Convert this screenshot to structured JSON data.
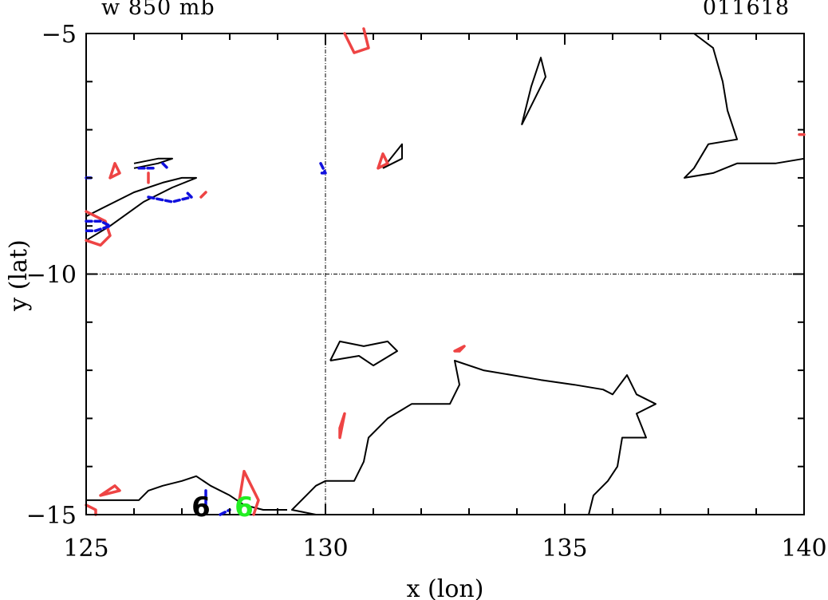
{
  "header": {
    "left": "w 850 mb",
    "right": "011618"
  },
  "chart_data": {
    "type": "contour",
    "xlabel": "x (lon)",
    "ylabel": "y (lat)",
    "xlim": [
      125,
      140
    ],
    "ylim": [
      -15,
      -5
    ],
    "x_ticks": [
      125,
      130,
      135,
      140
    ],
    "y_ticks": [
      -15,
      -10,
      -5
    ],
    "x_tick_labels": [
      "125",
      "130",
      "135",
      "140"
    ],
    "y_tick_labels": [
      "−15",
      "−10",
      "−5"
    ],
    "reference_lines": {
      "x": 130,
      "y": -10
    },
    "colors": {
      "coastline": "#000000",
      "positive": "#ee4444",
      "negative": "#1010dd",
      "marker_green": "#22ee22"
    },
    "markers": [
      {
        "label": "6",
        "lon": 127.4,
        "lat": -14.8,
        "color": "#000000"
      },
      {
        "label": "6",
        "lon": 128.3,
        "lat": -14.8,
        "color": "#22ee22"
      }
    ],
    "coastlines": [
      [
        [
          125,
          -8.8
        ],
        [
          125.6,
          -8.5
        ],
        [
          126,
          -8.3
        ],
        [
          126.6,
          -8.1
        ],
        [
          127,
          -8
        ],
        [
          127.3,
          -8
        ],
        [
          126.8,
          -8.2
        ],
        [
          126.2,
          -8.5
        ],
        [
          125.5,
          -9
        ],
        [
          125,
          -9.3
        ]
      ],
      [
        [
          126,
          -7.7
        ],
        [
          126.5,
          -7.6
        ],
        [
          126.8,
          -7.6
        ],
        [
          126.5,
          -7.7
        ],
        [
          126,
          -7.8
        ]
      ],
      [
        [
          130.6,
          -5
        ],
        [
          130.6,
          -5
        ]
      ],
      [
        [
          137,
          -5
        ],
        [
          137.7,
          -5
        ],
        [
          138.1,
          -5.3
        ],
        [
          138.3,
          -6
        ],
        [
          138.4,
          -6.6
        ],
        [
          138.6,
          -7.2
        ],
        [
          138,
          -7.3
        ],
        [
          137.7,
          -7.8
        ],
        [
          137.5,
          -8
        ],
        [
          138.1,
          -7.9
        ],
        [
          138.6,
          -7.7
        ],
        [
          139.4,
          -7.7
        ],
        [
          140,
          -7.6
        ]
      ],
      [
        [
          134.1,
          -6.9
        ],
        [
          134.3,
          -6.1
        ],
        [
          134.5,
          -5.5
        ],
        [
          134.6,
          -5.9
        ],
        [
          134.1,
          -6.9
        ]
      ],
      [
        [
          131.2,
          -7.8
        ],
        [
          131.6,
          -7.3
        ],
        [
          131.6,
          -7.6
        ],
        [
          131.2,
          -7.8
        ]
      ],
      [
        [
          130.1,
          -11.8
        ],
        [
          130.3,
          -11.4
        ],
        [
          130.8,
          -11.5
        ],
        [
          131.3,
          -11.4
        ],
        [
          131.5,
          -11.6
        ],
        [
          131,
          -11.9
        ],
        [
          130.7,
          -11.7
        ],
        [
          130.1,
          -11.8
        ]
      ],
      [
        [
          129.2,
          -14.9
        ],
        [
          128.7,
          -14.9
        ],
        [
          128.3,
          -14.8
        ],
        [
          128,
          -14.6
        ],
        [
          127.6,
          -14.4
        ],
        [
          127.3,
          -14.2
        ],
        [
          127,
          -14.3
        ],
        [
          126.6,
          -14.4
        ],
        [
          126.3,
          -14.5
        ],
        [
          126.1,
          -14.7
        ],
        [
          125.6,
          -14.7
        ],
        [
          125,
          -14.7
        ]
      ],
      [
        [
          129.8,
          -15
        ],
        [
          129.3,
          -14.9
        ],
        [
          129.6,
          -14.6
        ],
        [
          129.8,
          -14.4
        ],
        [
          130,
          -14.3
        ],
        [
          130.6,
          -14.3
        ],
        [
          130.8,
          -13.9
        ],
        [
          130.9,
          -13.4
        ],
        [
          131.3,
          -13
        ],
        [
          131.8,
          -12.7
        ],
        [
          132.6,
          -12.7
        ],
        [
          132.8,
          -12.3
        ],
        [
          132.7,
          -11.8
        ],
        [
          133.3,
          -12
        ],
        [
          133.9,
          -12.1
        ],
        [
          134.5,
          -12.2
        ],
        [
          135.2,
          -12.3
        ],
        [
          135.8,
          -12.4
        ],
        [
          136,
          -12.5
        ],
        [
          136.3,
          -12.1
        ],
        [
          136.5,
          -12.5
        ],
        [
          136.9,
          -12.7
        ],
        [
          136.5,
          -12.9
        ],
        [
          136.7,
          -13.4
        ],
        [
          136.2,
          -13.4
        ],
        [
          136.1,
          -14
        ],
        [
          135.9,
          -14.3
        ],
        [
          135.6,
          -14.6
        ],
        [
          135.5,
          -15
        ]
      ]
    ],
    "positive_contours": [
      [
        [
          130.4,
          -5
        ],
        [
          130.6,
          -5.4
        ],
        [
          130.9,
          -5.3
        ],
        [
          130.8,
          -4.9
        ]
      ],
      [
        [
          131.1,
          -7.8
        ],
        [
          131.2,
          -7.5
        ],
        [
          131.3,
          -7.7
        ],
        [
          131.1,
          -7.8
        ]
      ],
      [
        [
          132.8,
          -11.6
        ],
        [
          132.9,
          -11.5
        ],
        [
          132.7,
          -11.6
        ],
        [
          132.8,
          -11.6
        ]
      ],
      [
        [
          130.3,
          -13.2
        ],
        [
          130.4,
          -12.9
        ],
        [
          130.3,
          -13.4
        ],
        [
          130.3,
          -13.2
        ]
      ],
      [
        [
          125.5,
          -8
        ],
        [
          125.6,
          -7.7
        ],
        [
          125.7,
          -7.9
        ],
        [
          125.5,
          -8
        ]
      ],
      [
        [
          125,
          -8.7
        ],
        [
          125.4,
          -8.9
        ],
        [
          125.5,
          -9.2
        ],
        [
          125.3,
          -9.4
        ],
        [
          125,
          -9.3
        ]
      ],
      [
        [
          126.3,
          -8.1
        ],
        [
          126.3,
          -7.9
        ]
      ],
      [
        [
          127.4,
          -8.4
        ],
        [
          127.5,
          -8.3
        ]
      ],
      [
        [
          128.2,
          -14.7
        ],
        [
          128.3,
          -14.1
        ],
        [
          128.6,
          -14.7
        ],
        [
          128.5,
          -15
        ]
      ],
      [
        [
          125.3,
          -14.6
        ],
        [
          125.6,
          -14.4
        ],
        [
          125.7,
          -14.5
        ],
        [
          125.3,
          -14.6
        ]
      ],
      [
        [
          125,
          -14.8
        ],
        [
          125.2,
          -14.9
        ],
        [
          125.2,
          -15
        ]
      ],
      [
        [
          140,
          -7.1
        ],
        [
          139.9,
          -7.1
        ]
      ]
    ],
    "negative_contours": [
      [
        [
          129.9,
          -7.7
        ],
        [
          130,
          -7.9
        ],
        [
          129.9,
          -7.9
        ]
      ],
      [
        [
          125,
          -8.9
        ],
        [
          125.3,
          -8.9
        ],
        [
          125.5,
          -9
        ],
        [
          125.2,
          -9.1
        ],
        [
          125,
          -9.1
        ]
      ],
      [
        [
          126.1,
          -7.8
        ],
        [
          126.4,
          -7.8
        ]
      ],
      [
        [
          126.6,
          -7.7
        ],
        [
          126.7,
          -7.8
        ]
      ],
      [
        [
          126.3,
          -8.4
        ],
        [
          126.8,
          -8.5
        ],
        [
          127.2,
          -8.4
        ],
        [
          127.1,
          -8.3
        ]
      ],
      [
        [
          127.5,
          -14.5
        ],
        [
          127.5,
          -14.8
        ]
      ],
      [
        [
          127.8,
          -15
        ],
        [
          128,
          -14.9
        ]
      ],
      [
        [
          125,
          -8
        ],
        [
          125.1,
          -8
        ]
      ]
    ]
  }
}
